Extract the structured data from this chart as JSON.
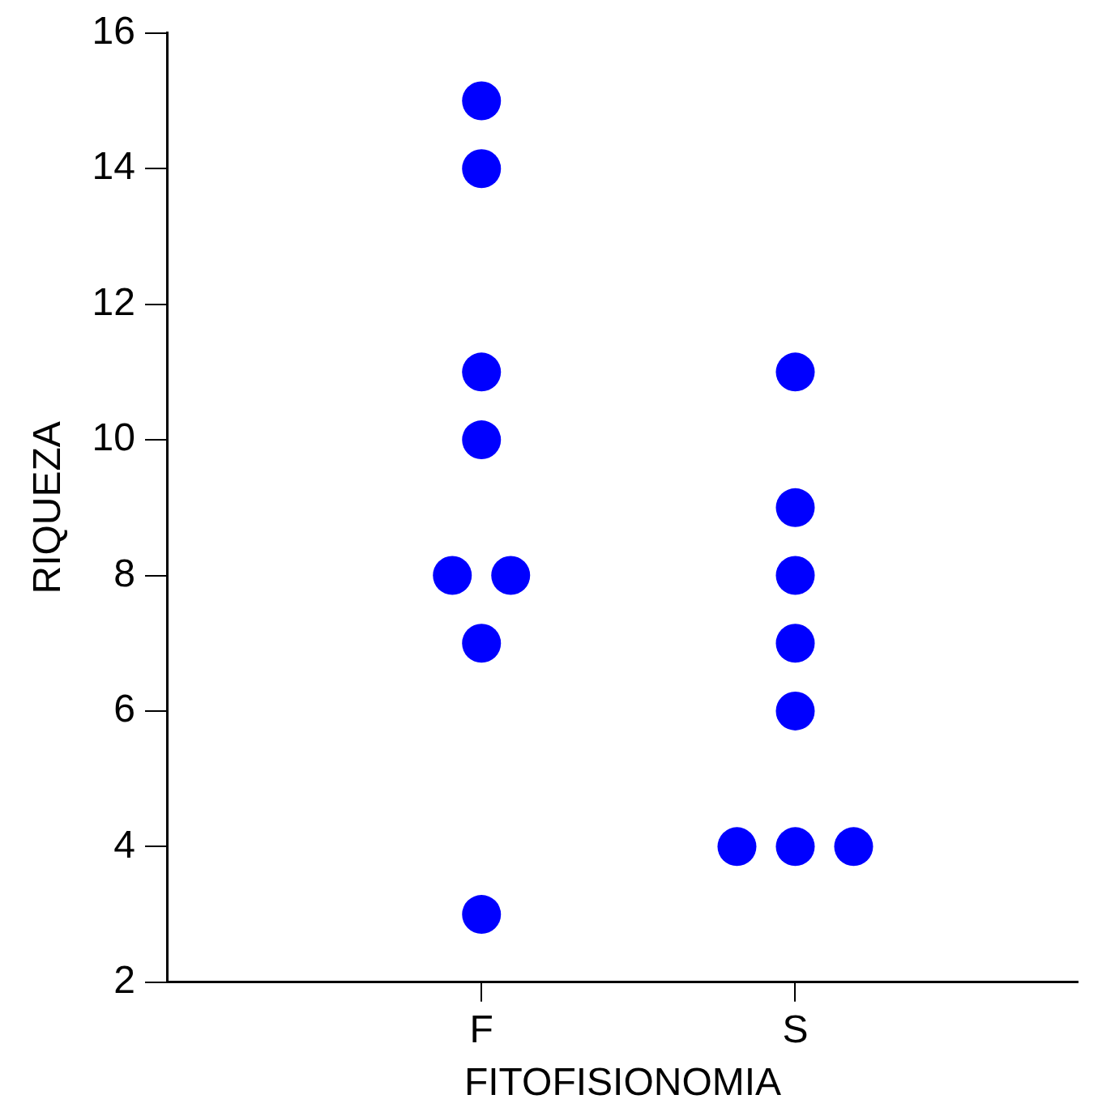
{
  "chart_data": {
    "type": "scatter",
    "xlabel": "FITOFISIONOMIA",
    "ylabel": "RIQUEZA",
    "categories": [
      "F",
      "S"
    ],
    "series": [
      {
        "color": "#0000ff",
        "x": [
          "F",
          "F",
          "F",
          "F",
          "F",
          "F",
          "F",
          "F",
          "S",
          "S",
          "S",
          "S",
          "S",
          "S",
          "S",
          "S"
        ],
        "values": [
          15,
          14,
          11,
          10,
          8,
          8,
          7,
          3,
          11,
          9,
          8,
          7,
          6,
          4,
          4,
          4
        ]
      }
    ],
    "ylim": [
      2,
      16
    ],
    "yticks": [
      2,
      4,
      6,
      8,
      10,
      12,
      14,
      16
    ],
    "grid": false,
    "legend": false,
    "marker": "circle"
  }
}
